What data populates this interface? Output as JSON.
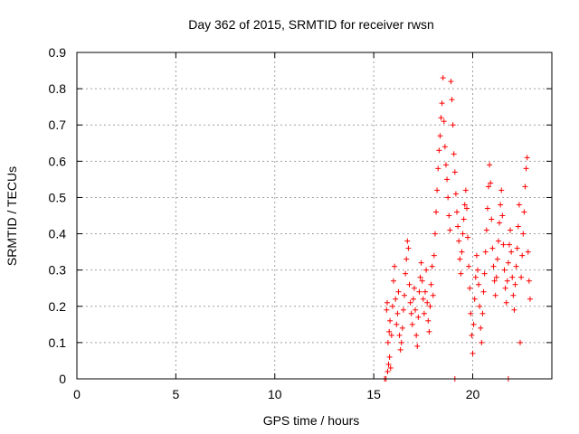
{
  "chart_data": {
    "type": "scatter",
    "title": "Day 362 of 2015, SRMTID for receiver rwsn",
    "xlabel": "GPS time / hours",
    "ylabel": "SRMTID / TECUs",
    "xlim": [
      0,
      24
    ],
    "ylim": [
      0,
      0.9
    ],
    "xticks": [
      0,
      5,
      10,
      15,
      20
    ],
    "xtick_labels": [
      "0",
      "5",
      "10",
      "15",
      "20"
    ],
    "yticks": [
      0,
      0.1,
      0.2,
      0.3,
      0.4,
      0.5,
      0.6,
      0.7,
      0.8,
      0.9
    ],
    "ytick_labels": [
      "0",
      "0.1",
      "0.2",
      "0.3",
      "0.4",
      "0.5",
      "0.6",
      "0.7",
      "0.8",
      "0.9"
    ],
    "grid": true,
    "marker": "+",
    "marker_color": "#ff0000",
    "series": [
      {
        "name": "SRMTID",
        "points": [
          [
            15.55,
            0.0
          ],
          [
            15.62,
            0.0
          ],
          [
            15.7,
            0.02
          ],
          [
            15.75,
            0.04
          ],
          [
            15.8,
            0.06
          ],
          [
            15.85,
            0.03
          ],
          [
            15.72,
            0.1
          ],
          [
            15.78,
            0.13
          ],
          [
            15.65,
            0.19
          ],
          [
            15.68,
            0.21
          ],
          [
            15.82,
            0.16
          ],
          [
            15.9,
            0.12
          ],
          [
            15.95,
            0.2
          ],
          [
            16.0,
            0.27
          ],
          [
            16.05,
            0.31
          ],
          [
            16.1,
            0.22
          ],
          [
            16.15,
            0.15
          ],
          [
            16.2,
            0.18
          ],
          [
            16.25,
            0.24
          ],
          [
            16.3,
            0.12
          ],
          [
            16.35,
            0.08
          ],
          [
            16.4,
            0.1
          ],
          [
            16.45,
            0.14
          ],
          [
            16.5,
            0.19
          ],
          [
            16.55,
            0.23
          ],
          [
            16.6,
            0.29
          ],
          [
            16.65,
            0.33
          ],
          [
            16.7,
            0.38
          ],
          [
            16.75,
            0.36
          ],
          [
            16.8,
            0.26
          ],
          [
            16.85,
            0.21
          ],
          [
            16.9,
            0.18
          ],
          [
            16.95,
            0.15
          ],
          [
            17.0,
            0.22
          ],
          [
            17.05,
            0.25
          ],
          [
            17.1,
            0.19
          ],
          [
            17.15,
            0.12
          ],
          [
            17.2,
            0.09
          ],
          [
            17.25,
            0.17
          ],
          [
            17.3,
            0.24
          ],
          [
            17.35,
            0.28
          ],
          [
            17.4,
            0.32
          ],
          [
            17.45,
            0.27
          ],
          [
            17.5,
            0.22
          ],
          [
            17.55,
            0.18
          ],
          [
            17.6,
            0.24
          ],
          [
            17.65,
            0.3
          ],
          [
            17.7,
            0.21
          ],
          [
            17.75,
            0.16
          ],
          [
            17.8,
            0.13
          ],
          [
            17.85,
            0.2
          ],
          [
            17.9,
            0.26
          ],
          [
            17.95,
            0.31
          ],
          [
            18.0,
            0.23
          ],
          [
            18.05,
            0.34
          ],
          [
            18.1,
            0.4
          ],
          [
            18.15,
            0.46
          ],
          [
            18.2,
            0.52
          ],
          [
            18.25,
            0.58
          ],
          [
            18.3,
            0.63
          ],
          [
            18.35,
            0.67
          ],
          [
            18.4,
            0.72
          ],
          [
            18.45,
            0.76
          ],
          [
            18.5,
            0.83
          ],
          [
            18.55,
            0.71
          ],
          [
            18.6,
            0.64
          ],
          [
            18.65,
            0.59
          ],
          [
            18.7,
            0.55
          ],
          [
            18.75,
            0.5
          ],
          [
            18.8,
            0.45
          ],
          [
            18.85,
            0.41
          ],
          [
            18.9,
            0.82
          ],
          [
            18.95,
            0.77
          ],
          [
            19.0,
            0.7
          ],
          [
            19.05,
            0.62
          ],
          [
            19.1,
            0.57
          ],
          [
            19.15,
            0.51
          ],
          [
            19.2,
            0.46
          ],
          [
            19.25,
            0.42
          ],
          [
            19.3,
            0.38
          ],
          [
            19.35,
            0.33
          ],
          [
            19.4,
            0.29
          ],
          [
            19.45,
            0.35
          ],
          [
            19.5,
            0.4
          ],
          [
            19.55,
            0.44
          ],
          [
            19.6,
            0.48
          ],
          [
            19.65,
            0.52
          ],
          [
            19.7,
            0.47
          ],
          [
            19.75,
            0.39
          ],
          [
            19.8,
            0.31
          ],
          [
            19.85,
            0.25
          ],
          [
            19.9,
            0.18
          ],
          [
            19.95,
            0.12
          ],
          [
            20.0,
            0.07
          ],
          [
            20.05,
            0.15
          ],
          [
            20.1,
            0.22
          ],
          [
            20.15,
            0.28
          ],
          [
            20.2,
            0.34
          ],
          [
            20.25,
            0.3
          ],
          [
            20.3,
            0.26
          ],
          [
            20.35,
            0.2
          ],
          [
            20.4,
            0.14
          ],
          [
            20.45,
            0.1
          ],
          [
            20.5,
            0.18
          ],
          [
            20.55,
            0.24
          ],
          [
            20.6,
            0.29
          ],
          [
            20.65,
            0.35
          ],
          [
            20.7,
            0.41
          ],
          [
            20.75,
            0.47
          ],
          [
            20.8,
            0.53
          ],
          [
            20.85,
            0.59
          ],
          [
            20.9,
            0.54
          ],
          [
            20.95,
            0.44
          ],
          [
            21.0,
            0.36
          ],
          [
            21.05,
            0.31
          ],
          [
            21.1,
            0.27
          ],
          [
            21.15,
            0.23
          ],
          [
            21.2,
            0.28
          ],
          [
            21.25,
            0.33
          ],
          [
            21.3,
            0.38
          ],
          [
            21.35,
            0.43
          ],
          [
            21.4,
            0.48
          ],
          [
            21.45,
            0.52
          ],
          [
            21.5,
            0.45
          ],
          [
            21.55,
            0.37
          ],
          [
            21.6,
            0.3
          ],
          [
            21.65,
            0.25
          ],
          [
            21.7,
            0.21
          ],
          [
            21.75,
            0.27
          ],
          [
            21.8,
            0.32
          ],
          [
            21.85,
            0.37
          ],
          [
            21.9,
            0.41
          ],
          [
            21.95,
            0.35
          ],
          [
            22.0,
            0.28
          ],
          [
            22.05,
            0.23
          ],
          [
            22.1,
            0.19
          ],
          [
            22.15,
            0.26
          ],
          [
            22.2,
            0.31
          ],
          [
            22.25,
            0.36
          ],
          [
            22.3,
            0.42
          ],
          [
            22.35,
            0.48
          ],
          [
            22.4,
            0.1
          ],
          [
            22.45,
            0.28
          ],
          [
            22.5,
            0.34
          ],
          [
            22.55,
            0.4
          ],
          [
            22.6,
            0.46
          ],
          [
            22.65,
            0.53
          ],
          [
            22.7,
            0.58
          ],
          [
            22.75,
            0.61
          ],
          [
            22.8,
            0.35
          ],
          [
            22.85,
            0.27
          ],
          [
            22.9,
            0.22
          ],
          [
            19.1,
            0.0
          ],
          [
            21.8,
            0.0
          ]
        ]
      }
    ]
  }
}
